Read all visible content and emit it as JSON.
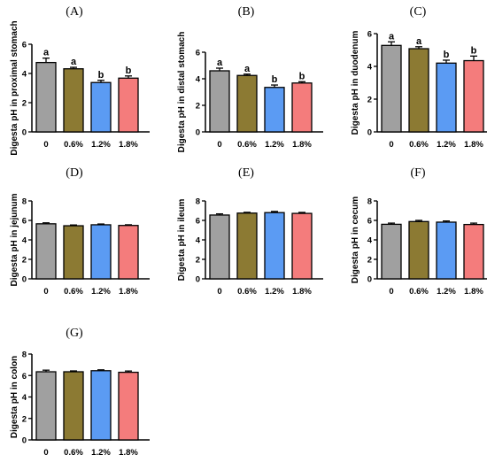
{
  "colors": {
    "0": "#a0a0a0",
    "0.6%": "#8c7a33",
    "1.2%": "#5b9bf3",
    "1.8%": "#f47c7c",
    "axis": "#000000"
  },
  "chart_data": [
    {
      "type": "bar",
      "panel_label": "(A)",
      "ylabel": "Digesta pH in proximal stomach",
      "categories": [
        "0",
        "0.6%",
        "1.2%",
        "1.8%"
      ],
      "values": [
        4.75,
        4.32,
        3.38,
        3.68
      ],
      "errors": [
        0.3,
        0.1,
        0.15,
        0.15
      ],
      "significance": [
        "a",
        "a",
        "b",
        "b"
      ],
      "ylim": [
        0,
        6
      ],
      "yticks": [
        "0",
        "2",
        "4",
        "6"
      ]
    },
    {
      "type": "bar",
      "panel_label": "(B)",
      "ylabel": "Digesta pH in distal stomach",
      "categories": [
        "0",
        "0.6%",
        "1.2%",
        "1.8%"
      ],
      "values": [
        4.6,
        4.25,
        3.35,
        3.68
      ],
      "errors": [
        0.2,
        0.1,
        0.18,
        0.1
      ],
      "significance": [
        "a",
        "a",
        "b",
        "b"
      ],
      "ylim": [
        0,
        6
      ],
      "yticks": [
        "0",
        "2",
        "4",
        "6"
      ]
    },
    {
      "type": "bar",
      "panel_label": "(C)",
      "ylabel": "Digesta pH in duodenum",
      "categories": [
        "0",
        "0.6%",
        "1.2%",
        "1.8%"
      ],
      "values": [
        5.28,
        5.08,
        4.2,
        4.35
      ],
      "errors": [
        0.22,
        0.12,
        0.18,
        0.28
      ],
      "significance": [
        "a",
        "a",
        "b",
        "b"
      ],
      "ylim": [
        0,
        6
      ],
      "yticks": [
        "0",
        "2",
        "4",
        "6"
      ]
    },
    {
      "type": "bar",
      "panel_label": "(D)",
      "ylabel": "Digesta pH in jejunum",
      "categories": [
        "0",
        "0.6%",
        "1.2%",
        "1.8%"
      ],
      "values": [
        5.65,
        5.45,
        5.55,
        5.48
      ],
      "errors": [
        0.1,
        0.08,
        0.08,
        0.07
      ],
      "significance": [
        "",
        "",
        "",
        ""
      ],
      "ylim": [
        0,
        8
      ],
      "yticks": [
        "0",
        "2",
        "4",
        "6",
        "8"
      ]
    },
    {
      "type": "bar",
      "panel_label": "(E)",
      "ylabel": "Digesta pH in ileum",
      "categories": [
        "0",
        "0.6%",
        "1.2%",
        "1.8%"
      ],
      "values": [
        6.55,
        6.75,
        6.8,
        6.72
      ],
      "errors": [
        0.12,
        0.08,
        0.12,
        0.1
      ],
      "significance": [
        "",
        "",
        "",
        ""
      ],
      "ylim": [
        0,
        8
      ],
      "yticks": [
        "0",
        "2",
        "4",
        "6",
        "8"
      ]
    },
    {
      "type": "bar",
      "panel_label": "(F)",
      "ylabel": "Digesta pH in cecum",
      "categories": [
        "0",
        "0.6%",
        "1.2%",
        "1.8%"
      ],
      "values": [
        5.6,
        5.88,
        5.82,
        5.58
      ],
      "errors": [
        0.12,
        0.12,
        0.12,
        0.14
      ],
      "significance": [
        "",
        "",
        "",
        ""
      ],
      "ylim": [
        0,
        8
      ],
      "yticks": [
        "0",
        "2",
        "4",
        "6",
        "8"
      ]
    },
    {
      "type": "bar",
      "panel_label": "(G)",
      "ylabel": "Digesta pH in colon",
      "categories": [
        "0",
        "0.6%",
        "1.2%",
        "1.8%"
      ],
      "values": [
        6.35,
        6.35,
        6.45,
        6.3
      ],
      "errors": [
        0.15,
        0.08,
        0.08,
        0.12
      ],
      "significance": [
        "",
        "",
        "",
        ""
      ],
      "ylim": [
        0,
        8
      ],
      "yticks": [
        "0",
        "2",
        "4",
        "6",
        "8"
      ]
    }
  ]
}
